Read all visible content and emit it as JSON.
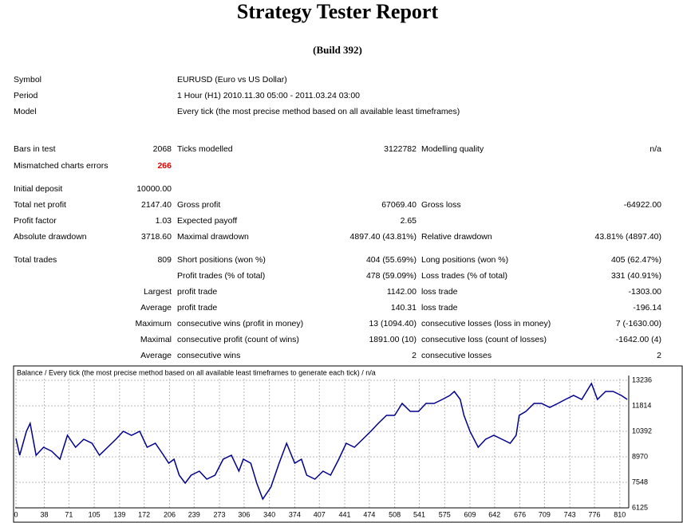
{
  "header": {
    "title": "Strategy Tester Report",
    "build": "(Build 392)"
  },
  "info": [
    [
      "Symbol",
      "EURUSD (Euro vs US Dollar)"
    ],
    [
      "Period",
      "1 Hour (H1) 2010.11.30 05:00 - 2011.03.24 03:00"
    ],
    [
      "Model",
      "Every tick (the most precise method based on all available least timeframes)"
    ]
  ],
  "stats": [
    [
      "Bars in test",
      "2068",
      "Ticks modelled",
      "3122782",
      "Modelling quality",
      "n/a"
    ],
    [
      "Mismatched charts errors",
      "266",
      null,
      null,
      null,
      null
    ],
    [
      "Initial deposit",
      "10000.00",
      null,
      null,
      null,
      null
    ],
    [
      "Total net profit",
      "2147.40",
      "Gross profit",
      "67069.40",
      "Gross loss",
      "-64922.00"
    ],
    [
      "Profit factor",
      "1.03",
      "Expected payoff",
      "2.65",
      null,
      null
    ],
    [
      "Absolute drawdown",
      "3718.60",
      "Maximal drawdown",
      "4897.40 (43.81%)",
      "Relative drawdown",
      "43.81% (4897.40)"
    ],
    [
      "Total trades",
      "809",
      "Short positions (won %)",
      "404 (55.69%)",
      "Long positions (won %)",
      "405 (62.47%)"
    ],
    [
      null,
      null,
      "Profit trades (% of total)",
      "478 (59.09%)",
      "Loss trades (% of total)",
      "331 (40.91%)"
    ],
    [
      null,
      "Largest",
      "profit trade",
      "1142.00",
      "loss trade",
      "-1303.00"
    ],
    [
      null,
      "Average",
      "profit trade",
      "140.31",
      "loss trade",
      "-196.14"
    ],
    [
      null,
      "Maximum",
      "consecutive wins (profit in money)",
      "13 (1094.40)",
      "consecutive losses (loss in money)",
      "7 (-1630.00)"
    ],
    [
      null,
      "Maximal",
      "consecutive profit (count of wins)",
      "1891.00 (10)",
      "consecutive loss (count of losses)",
      "-1642.00 (4)"
    ],
    [
      null,
      "Average",
      "consecutive wins",
      "2",
      "consecutive losses",
      "2"
    ]
  ],
  "chart_data": {
    "type": "line",
    "title": "Balance / Every tick (the most precise method based on all available least timeframes to generate each tick) / n/a",
    "x": [
      0,
      5,
      14,
      19,
      27,
      37,
      48,
      59,
      69,
      80,
      91,
      102,
      112,
      123,
      134,
      144,
      155,
      166,
      176,
      187,
      198,
      205,
      212,
      219,
      227,
      235,
      246,
      256,
      267,
      278,
      289,
      299,
      305,
      315,
      323,
      331,
      342,
      353,
      363,
      374,
      383,
      390,
      401,
      412,
      422,
      433,
      443,
      454,
      465,
      476,
      486,
      497,
      508,
      518,
      529,
      540,
      550,
      561,
      572,
      582,
      588,
      596,
      601,
      609,
      620,
      630,
      641,
      652,
      663,
      671,
      675,
      684,
      695,
      705,
      716,
      727,
      737,
      748,
      759,
      772,
      780,
      791,
      801,
      812,
      820
    ],
    "series": [
      {
        "name": "Balance",
        "color": "#00008b",
        "values": [
          10000,
          9058,
          10391,
          10836,
          9058,
          9502,
          9280,
          8836,
          10169,
          9502,
          9947,
          9725,
          9058,
          9502,
          9947,
          10391,
          10169,
          10391,
          9502,
          9725,
          9058,
          8614,
          8836,
          7947,
          7503,
          7947,
          8169,
          7725,
          7947,
          8836,
          9058,
          8169,
          8836,
          8614,
          7503,
          6614,
          7280,
          8614,
          9725,
          8614,
          8836,
          7947,
          7725,
          8169,
          7947,
          8836,
          9725,
          9502,
          9947,
          10391,
          10836,
          11280,
          11280,
          11947,
          11502,
          11502,
          11947,
          11947,
          12169,
          12391,
          12613,
          12169,
          11280,
          10391,
          9502,
          9947,
          10169,
          9947,
          9725,
          10169,
          11280,
          11502,
          11947,
          11947,
          11725,
          11947,
          12169,
          12391,
          12169,
          13058,
          12169,
          12613,
          12613,
          12391,
          12169
        ]
      }
    ],
    "xlim": [
      0,
      822
    ],
    "ylim": [
      6125,
      13947
    ],
    "xticks": [
      0,
      38,
      71,
      105,
      139,
      172,
      206,
      239,
      273,
      306,
      340,
      374,
      407,
      441,
      474,
      508,
      541,
      575,
      609,
      642,
      676,
      709,
      743,
      776,
      810
    ],
    "yticks": [
      6125,
      7548,
      8970,
      10392,
      11814,
      13236
    ],
    "grid": true
  }
}
